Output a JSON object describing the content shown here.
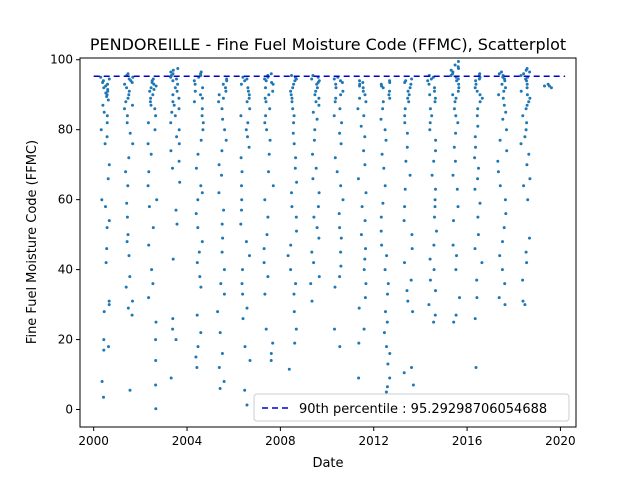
{
  "chart_data": {
    "type": "scatter",
    "title": "PENDOREILLE - Fine Fuel Moisture Code (FFMC), Scatterplot",
    "xlabel": "Date",
    "ylabel": "Fine Fuel Moisture Code (FFMC)",
    "xlim": [
      "1999-06-01",
      "2020-09-01"
    ],
    "ylim": [
      -5,
      100.5
    ],
    "x_ticks": [
      "2000",
      "2004",
      "2008",
      "2012",
      "2016",
      "2020"
    ],
    "y_ticks": [
      0,
      20,
      40,
      60,
      80,
      100
    ],
    "grid": false,
    "legend": {
      "placement": "lower right",
      "entries": [
        "90th percentile : 95.29298706054688"
      ]
    },
    "reference_line": {
      "value": 95.29298706054688,
      "style": "dashed",
      "color": "#0000cc"
    },
    "point_color": "#1f77b4",
    "series": [
      {
        "name": "",
        "note_points": "points listed as [season_center_year_fraction, FFMC] summary samples per fire season",
        "seasons": [
          {
            "year": 2000,
            "values": [
              95.0,
              94.5,
              94,
              93.5,
              93,
              92.5,
              92,
              91.5,
              91,
              90.5,
              90,
              89.5,
              88.5,
              87,
              85,
              84,
              82,
              80,
              78,
              76,
              70,
              66,
              60,
              58,
              54,
              52,
              46,
              42,
              31,
              30,
              28,
              20,
              18,
              17,
              8,
              3.5
            ]
          },
          {
            "year": 2001,
            "values": [
              96.0,
              95.5,
              95,
              94.5,
              94,
              93.5,
              93,
              92,
              91,
              90,
              89,
              88,
              87,
              86,
              84,
              82,
              79,
              76,
              72,
              68,
              64,
              59,
              55,
              50,
              48,
              44,
              38,
              35,
              31,
              29,
              27,
              5.5
            ]
          },
          {
            "year": 2002,
            "values": [
              94.5,
              94,
              93.5,
              93,
              92.5,
              92,
              91.5,
              91,
              90,
              89,
              88,
              87,
              86,
              84,
              82,
              80,
              76,
              73,
              68,
              64,
              60,
              58,
              52,
              47,
              40,
              36,
              32,
              25,
              20,
              14,
              7,
              0.2
            ]
          },
          {
            "year": 2003,
            "values": [
              97.5,
              97,
              96.5,
              96,
              95.5,
              95,
              94.5,
              94,
              93,
              92,
              91,
              90,
              89,
              88,
              87,
              86,
              85,
              84,
              82,
              80,
              78,
              76,
              74,
              71,
              69,
              65,
              57,
              53,
              43,
              26,
              23,
              20,
              9
            ]
          },
          {
            "year": 2004,
            "values": [
              96.5,
              96,
              95.5,
              95,
              94,
              93,
              92,
              91,
              90,
              89,
              88,
              86,
              84,
              82,
              80,
              77,
              73,
              69,
              64,
              62,
              60,
              56,
              52,
              48,
              45,
              42,
              38,
              35,
              27,
              22,
              18,
              15,
              12
            ]
          },
          {
            "year": 2005,
            "values": [
              94.5,
              94,
              93,
              92,
              91,
              90,
              89,
              88,
              86,
              83,
              80,
              77,
              74,
              70,
              67,
              62,
              57,
              53,
              49,
              45,
              40,
              36,
              33,
              28,
              22,
              16,
              12,
              8,
              6
            ]
          },
          {
            "year": 2006,
            "values": [
              95.0,
              94.5,
              94,
              93,
              92,
              91,
              90,
              89,
              88,
              86,
              84,
              82,
              80,
              78,
              75,
              72,
              68,
              64,
              60,
              57,
              53,
              48,
              44,
              40,
              36,
              33,
              29,
              26,
              18,
              14,
              5.5,
              1.3
            ]
          },
          {
            "year": 2007,
            "values": [
              96.0,
              95.5,
              95,
              94.5,
              94,
              93.5,
              93,
              92,
              91,
              90,
              89,
              88,
              86,
              84,
              82,
              80,
              77,
              73,
              68,
              64,
              60,
              55,
              50,
              46,
              42,
              38,
              33,
              23,
              19,
              16,
              14
            ]
          },
          {
            "year": 2008,
            "values": [
              95.5,
              95,
              94.5,
              94,
              93,
              92,
              91,
              90,
              89,
              88,
              86,
              84,
              82,
              79,
              76,
              72,
              69,
              65,
              62,
              58,
              55,
              51,
              47,
              44,
              40,
              36,
              33,
              28,
              23,
              19,
              11.5
            ]
          },
          {
            "year": 2009,
            "values": [
              95.5,
              95,
              94.5,
              94,
              93.5,
              93,
              92,
              91,
              90,
              89,
              88,
              87,
              85,
              83,
              80,
              77,
              73,
              69,
              66,
              62,
              58,
              55,
              52,
              49,
              45,
              42,
              38,
              36,
              31
            ]
          },
          {
            "year": 2010,
            "values": [
              95.0,
              94.5,
              94,
              93.5,
              93,
              92,
              91,
              90,
              89,
              88,
              86,
              84,
              82,
              79,
              76,
              72,
              68,
              64,
              60,
              56,
              52,
              49,
              45,
              41,
              38,
              35,
              23,
              18
            ]
          },
          {
            "year": 2011,
            "values": [
              94.0,
              93.5,
              93,
              92.5,
              92,
              91,
              90,
              89,
              88,
              86,
              84,
              81,
              78,
              74,
              70,
              66,
              62,
              58,
              54,
              50,
              46,
              43,
              40,
              36,
              32,
              29,
              23,
              19,
              9
            ]
          },
          {
            "year": 2012,
            "values": [
              94.0,
              93.5,
              93,
              92.5,
              92,
              91,
              90,
              89,
              88,
              86,
              83,
              80,
              77,
              73,
              69,
              64,
              59,
              55,
              51,
              47,
              44,
              40,
              36,
              33,
              28,
              25,
              22,
              18,
              16,
              13,
              9,
              6.5,
              5
            ]
          },
          {
            "year": 2013,
            "values": [
              94.5,
              94,
              93.5,
              93,
              92,
              91,
              90,
              89,
              88,
              86,
              84,
              82,
              79,
              75,
              71,
              67,
              63,
              58,
              54,
              50,
              46,
              42,
              37,
              34,
              31,
              28,
              12,
              10.5,
              7
            ]
          },
          {
            "year": 2014,
            "values": [
              95.5,
              95,
              94.5,
              94,
              93,
              92,
              91,
              90,
              89,
              88,
              86,
              84,
              82,
              80,
              77,
              74,
              71,
              67,
              63,
              60,
              58,
              55,
              51,
              47,
              43,
              40,
              37,
              34,
              30,
              27,
              25
            ]
          },
          {
            "year": 2015,
            "values": [
              99.5,
              98.5,
              98,
              97.5,
              97,
              96.5,
              96,
              95.5,
              95,
              94.5,
              94,
              93,
              92,
              91,
              90,
              89,
              88,
              86,
              84,
              82,
              79,
              75,
              71,
              67,
              63,
              58,
              54,
              47,
              44,
              40,
              32,
              27,
              25
            ]
          },
          {
            "year": 2016,
            "values": [
              96.0,
              95.5,
              95,
              94.5,
              94,
              93,
              92,
              91,
              90,
              89,
              88,
              86,
              84,
              81,
              78,
              75,
              72,
              69,
              66,
              63,
              59,
              55,
              50,
              46,
              42,
              37,
              32,
              26,
              12
            ]
          },
          {
            "year": 2017,
            "values": [
              96.5,
              96,
              95.5,
              95,
              94.5,
              94,
              93,
              92,
              91,
              90,
              89,
              87,
              85,
              83,
              80,
              77,
              74,
              71,
              68,
              64,
              60,
              56,
              52,
              48,
              44,
              40,
              36,
              32,
              30
            ]
          },
          {
            "year": 2018,
            "values": [
              97.5,
              97,
              96.5,
              96,
              95.5,
              95,
              94.5,
              94,
              93,
              92,
              91,
              90,
              89,
              88,
              87,
              86,
              84,
              82,
              80,
              78,
              76,
              73,
              70,
              66,
              64,
              60,
              49,
              45,
              42,
              37,
              31,
              30
            ]
          },
          {
            "year": 2019,
            "values": [
              93.0,
              92.5,
              92.5,
              92
            ]
          }
        ]
      }
    ]
  }
}
